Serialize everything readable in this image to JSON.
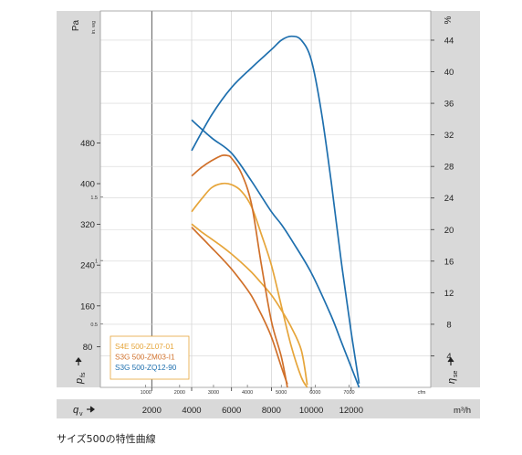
{
  "chart_data": {
    "type": "line",
    "title": "",
    "y_left": {
      "unit": "Pa",
      "symbol": "p",
      "symbol_sub": "fs",
      "ticks": [
        "80",
        "160",
        "240",
        "320",
        "400",
        "480"
      ],
      "range": [
        0,
        536
      ]
    },
    "y_inner": {
      "unit": "in. wg",
      "ticks": [
        "0.5",
        "1",
        "1.5"
      ]
    },
    "y_right": {
      "unit": "%",
      "symbol": "η",
      "symbol_sub": "se",
      "ticks": [
        "4",
        "8",
        "12",
        "16",
        "20",
        "24",
        "28",
        "32",
        "36",
        "40",
        "44"
      ],
      "range": [
        0,
        49.6
      ]
    },
    "x_bottom": {
      "unit": "m³/h",
      "symbol": "q",
      "symbol_sub": "v",
      "ticks": [
        "2000",
        "4000",
        "6000",
        "8000",
        "10000",
        "12000"
      ],
      "range": [
        0,
        14000
      ]
    },
    "x_inner": {
      "unit": "cfm",
      "ticks": [
        "1000",
        "2000",
        "3000",
        "4000",
        "5000",
        "6000",
        "7000"
      ]
    },
    "legend": {
      "position": "bottom-left",
      "entries": [
        {
          "label": "S4E 500-ZL07-01",
          "color": "#e6a53a"
        },
        {
          "label": "S3G 500-ZM03-I1",
          "color": "#d0702a"
        },
        {
          "label": "S3G 500-ZQ12-90",
          "color": "#1e6fae"
        }
      ]
    },
    "series": [
      {
        "model": "S4E 500-ZL07-01",
        "color": "#e6a53a",
        "pressure": [
          [
            4000,
            345
          ],
          [
            4500,
            370
          ],
          [
            5000,
            392
          ],
          [
            5500,
            400
          ],
          [
            6000,
            398
          ],
          [
            6500,
            385
          ],
          [
            7000,
            355
          ],
          [
            7500,
            300
          ],
          [
            8000,
            240
          ],
          [
            8500,
            160
          ],
          [
            9000,
            80
          ],
          [
            9500,
            20
          ],
          [
            9800,
            0
          ]
        ],
        "efficiency": [
          [
            4000,
            20.7
          ],
          [
            4500,
            19.7
          ],
          [
            5000,
            18.8
          ],
          [
            5500,
            17.9
          ],
          [
            6000,
            16.9
          ],
          [
            6500,
            15.8
          ],
          [
            7000,
            14.6
          ],
          [
            7500,
            13.2
          ],
          [
            8000,
            11.7
          ],
          [
            8500,
            9.8
          ],
          [
            9000,
            7.6
          ],
          [
            9500,
            4.7
          ],
          [
            9800,
            0.3
          ]
        ]
      },
      {
        "model": "S3G 500-ZM03-I1",
        "color": "#d0702a",
        "pressure": [
          [
            4000,
            415
          ],
          [
            4500,
            432
          ],
          [
            5000,
            445
          ],
          [
            5500,
            455
          ],
          [
            5800,
            455
          ],
          [
            6000,
            450
          ],
          [
            6500,
            420
          ],
          [
            7000,
            360
          ],
          [
            7500,
            240
          ],
          [
            8000,
            130
          ],
          [
            8500,
            60
          ],
          [
            8800,
            0
          ]
        ],
        "efficiency": [
          [
            4000,
            20.3
          ],
          [
            4500,
            19.0
          ],
          [
            5000,
            17.7
          ],
          [
            5500,
            16.4
          ],
          [
            6000,
            15.0
          ],
          [
            6500,
            13.4
          ],
          [
            7000,
            11.6
          ],
          [
            7500,
            9.2
          ],
          [
            8000,
            6.4
          ],
          [
            8500,
            2.6
          ],
          [
            8800,
            0.4
          ]
        ]
      },
      {
        "model": "S3G 500-ZQ12-90",
        "color": "#1e6fae",
        "pressure": [
          [
            4000,
            525
          ],
          [
            5000,
            490
          ],
          [
            6000,
            460
          ],
          [
            7000,
            405
          ],
          [
            8000,
            345
          ],
          [
            8500,
            320
          ],
          [
            9000,
            290
          ],
          [
            10000,
            225
          ],
          [
            11000,
            140
          ],
          [
            11500,
            90
          ],
          [
            12000,
            40
          ],
          [
            12400,
            0
          ]
        ],
        "efficiency": [
          [
            4000,
            30.0
          ],
          [
            5000,
            34.5
          ],
          [
            6000,
            38.0
          ],
          [
            7000,
            40.5
          ],
          [
            8000,
            42.8
          ],
          [
            8500,
            44.0
          ],
          [
            9000,
            44.5
          ],
          [
            9500,
            44.0
          ],
          [
            10000,
            41.5
          ],
          [
            10500,
            35.0
          ],
          [
            11000,
            26.0
          ],
          [
            11500,
            16.0
          ],
          [
            12000,
            7.0
          ],
          [
            12400,
            0.5
          ]
        ]
      }
    ]
  },
  "caption": "サイズ500の特性曲線"
}
